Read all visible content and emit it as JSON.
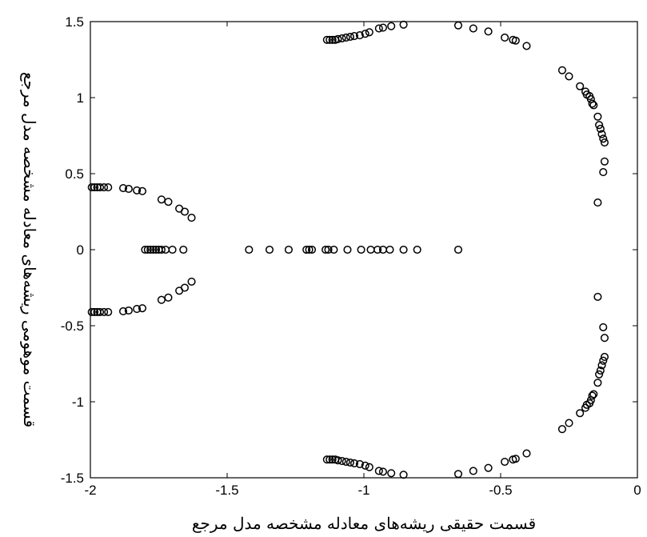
{
  "chart_data": {
    "type": "scatter",
    "title": "",
    "xlabel": "قسمت حقیقی ریشه‌های معادله مشخصه مدل مرجع",
    "ylabel": "قسمت موهومی ریشه‌های معادله مشخصه مدل مرجع",
    "xlim": [
      -2,
      0
    ],
    "ylim": [
      -1.5,
      1.5
    ],
    "grid": false,
    "marker": "circle",
    "x_ticks": [
      -2,
      -1.5,
      -1,
      -0.5,
      0
    ],
    "x_tick_labels": [
      "-2",
      "-1.5",
      "-1",
      "-0.5",
      "0"
    ],
    "y_ticks": [
      -1.5,
      -1,
      -0.5,
      0,
      0.5,
      1,
      1.5
    ],
    "y_tick_labels": [
      "-1.5",
      "-1",
      "-0.5",
      "0",
      "0.5",
      "1",
      "1.5"
    ],
    "points": [
      [
        -1.995,
        0.41
      ],
      [
        -1.985,
        0.41
      ],
      [
        -1.975,
        0.41
      ],
      [
        -1.965,
        0.41
      ],
      [
        -1.95,
        0.41
      ],
      [
        -1.935,
        0.41
      ],
      [
        -1.88,
        0.405
      ],
      [
        -1.86,
        0.4
      ],
      [
        -1.83,
        0.39
      ],
      [
        -1.81,
        0.385
      ],
      [
        -1.74,
        0.33
      ],
      [
        -1.715,
        0.315
      ],
      [
        -1.675,
        0.27
      ],
      [
        -1.655,
        0.25
      ],
      [
        -1.63,
        0.21
      ],
      [
        -1.995,
        -0.41
      ],
      [
        -1.985,
        -0.41
      ],
      [
        -1.975,
        -0.41
      ],
      [
        -1.965,
        -0.41
      ],
      [
        -1.95,
        -0.41
      ],
      [
        -1.935,
        -0.41
      ],
      [
        -1.88,
        -0.405
      ],
      [
        -1.86,
        -0.4
      ],
      [
        -1.83,
        -0.39
      ],
      [
        -1.81,
        -0.385
      ],
      [
        -1.74,
        -0.33
      ],
      [
        -1.715,
        -0.315
      ],
      [
        -1.675,
        -0.27
      ],
      [
        -1.655,
        -0.25
      ],
      [
        -1.63,
        -0.21
      ],
      [
        -1.8,
        0
      ],
      [
        -1.79,
        0
      ],
      [
        -1.78,
        0
      ],
      [
        -1.77,
        0
      ],
      [
        -1.76,
        0
      ],
      [
        -1.75,
        0
      ],
      [
        -1.74,
        0
      ],
      [
        -1.725,
        0
      ],
      [
        -1.7,
        0
      ],
      [
        -1.66,
        0
      ],
      [
        -1.42,
        0
      ],
      [
        -1.345,
        0
      ],
      [
        -1.275,
        0
      ],
      [
        -1.21,
        0
      ],
      [
        -1.2,
        0
      ],
      [
        -1.19,
        0
      ],
      [
        -1.14,
        0
      ],
      [
        -1.13,
        0
      ],
      [
        -1.11,
        0
      ],
      [
        -1.06,
        0
      ],
      [
        -1.01,
        0
      ],
      [
        -0.975,
        0
      ],
      [
        -0.95,
        0
      ],
      [
        -0.93,
        0
      ],
      [
        -0.905,
        0
      ],
      [
        -0.855,
        0
      ],
      [
        -0.805,
        0
      ],
      [
        -0.655,
        0
      ],
      [
        -1.135,
        1.38
      ],
      [
        -1.125,
        1.38
      ],
      [
        -1.115,
        1.38
      ],
      [
        -1.105,
        1.38
      ],
      [
        -1.095,
        1.385
      ],
      [
        -1.08,
        1.39
      ],
      [
        -1.065,
        1.395
      ],
      [
        -1.05,
        1.4
      ],
      [
        -1.035,
        1.405
      ],
      [
        -1.015,
        1.41
      ],
      [
        -0.995,
        1.42
      ],
      [
        -0.98,
        1.43
      ],
      [
        -0.945,
        1.455
      ],
      [
        -0.93,
        1.46
      ],
      [
        -0.9,
        1.47
      ],
      [
        -0.855,
        1.48
      ],
      [
        -0.655,
        1.475
      ],
      [
        -0.6,
        1.455
      ],
      [
        -0.545,
        1.435
      ],
      [
        -0.485,
        1.395
      ],
      [
        -0.455,
        1.38
      ],
      [
        -0.445,
        1.375
      ],
      [
        -0.405,
        1.34
      ],
      [
        -0.275,
        1.18
      ],
      [
        -0.25,
        1.14
      ],
      [
        -0.21,
        1.075
      ],
      [
        -0.19,
        1.04
      ],
      [
        -0.185,
        1.02
      ],
      [
        -0.175,
        1.01
      ],
      [
        -0.17,
        0.99
      ],
      [
        -0.165,
        0.96
      ],
      [
        -0.16,
        0.95
      ],
      [
        -0.145,
        0.875
      ],
      [
        -0.14,
        0.82
      ],
      [
        -0.135,
        0.795
      ],
      [
        -0.13,
        0.76
      ],
      [
        -0.125,
        0.73
      ],
      [
        -0.12,
        0.705
      ],
      [
        -0.12,
        0.58
      ],
      [
        -0.125,
        0.51
      ],
      [
        -0.145,
        0.31
      ],
      [
        -1.135,
        -1.38
      ],
      [
        -1.125,
        -1.38
      ],
      [
        -1.115,
        -1.38
      ],
      [
        -1.105,
        -1.38
      ],
      [
        -1.095,
        -1.385
      ],
      [
        -1.08,
        -1.39
      ],
      [
        -1.065,
        -1.395
      ],
      [
        -1.05,
        -1.4
      ],
      [
        -1.035,
        -1.405
      ],
      [
        -1.015,
        -1.41
      ],
      [
        -0.995,
        -1.42
      ],
      [
        -0.98,
        -1.43
      ],
      [
        -0.945,
        -1.455
      ],
      [
        -0.93,
        -1.46
      ],
      [
        -0.9,
        -1.47
      ],
      [
        -0.855,
        -1.48
      ],
      [
        -0.655,
        -1.475
      ],
      [
        -0.6,
        -1.455
      ],
      [
        -0.545,
        -1.435
      ],
      [
        -0.485,
        -1.395
      ],
      [
        -0.455,
        -1.38
      ],
      [
        -0.445,
        -1.375
      ],
      [
        -0.405,
        -1.34
      ],
      [
        -0.275,
        -1.18
      ],
      [
        -0.25,
        -1.14
      ],
      [
        -0.21,
        -1.075
      ],
      [
        -0.19,
        -1.04
      ],
      [
        -0.185,
        -1.02
      ],
      [
        -0.175,
        -1.01
      ],
      [
        -0.17,
        -0.99
      ],
      [
        -0.165,
        -0.96
      ],
      [
        -0.16,
        -0.95
      ],
      [
        -0.145,
        -0.875
      ],
      [
        -0.14,
        -0.82
      ],
      [
        -0.135,
        -0.795
      ],
      [
        -0.13,
        -0.76
      ],
      [
        -0.125,
        -0.73
      ],
      [
        -0.12,
        -0.705
      ],
      [
        -0.12,
        -0.58
      ],
      [
        -0.125,
        -0.51
      ],
      [
        -0.145,
        -0.31
      ]
    ]
  }
}
